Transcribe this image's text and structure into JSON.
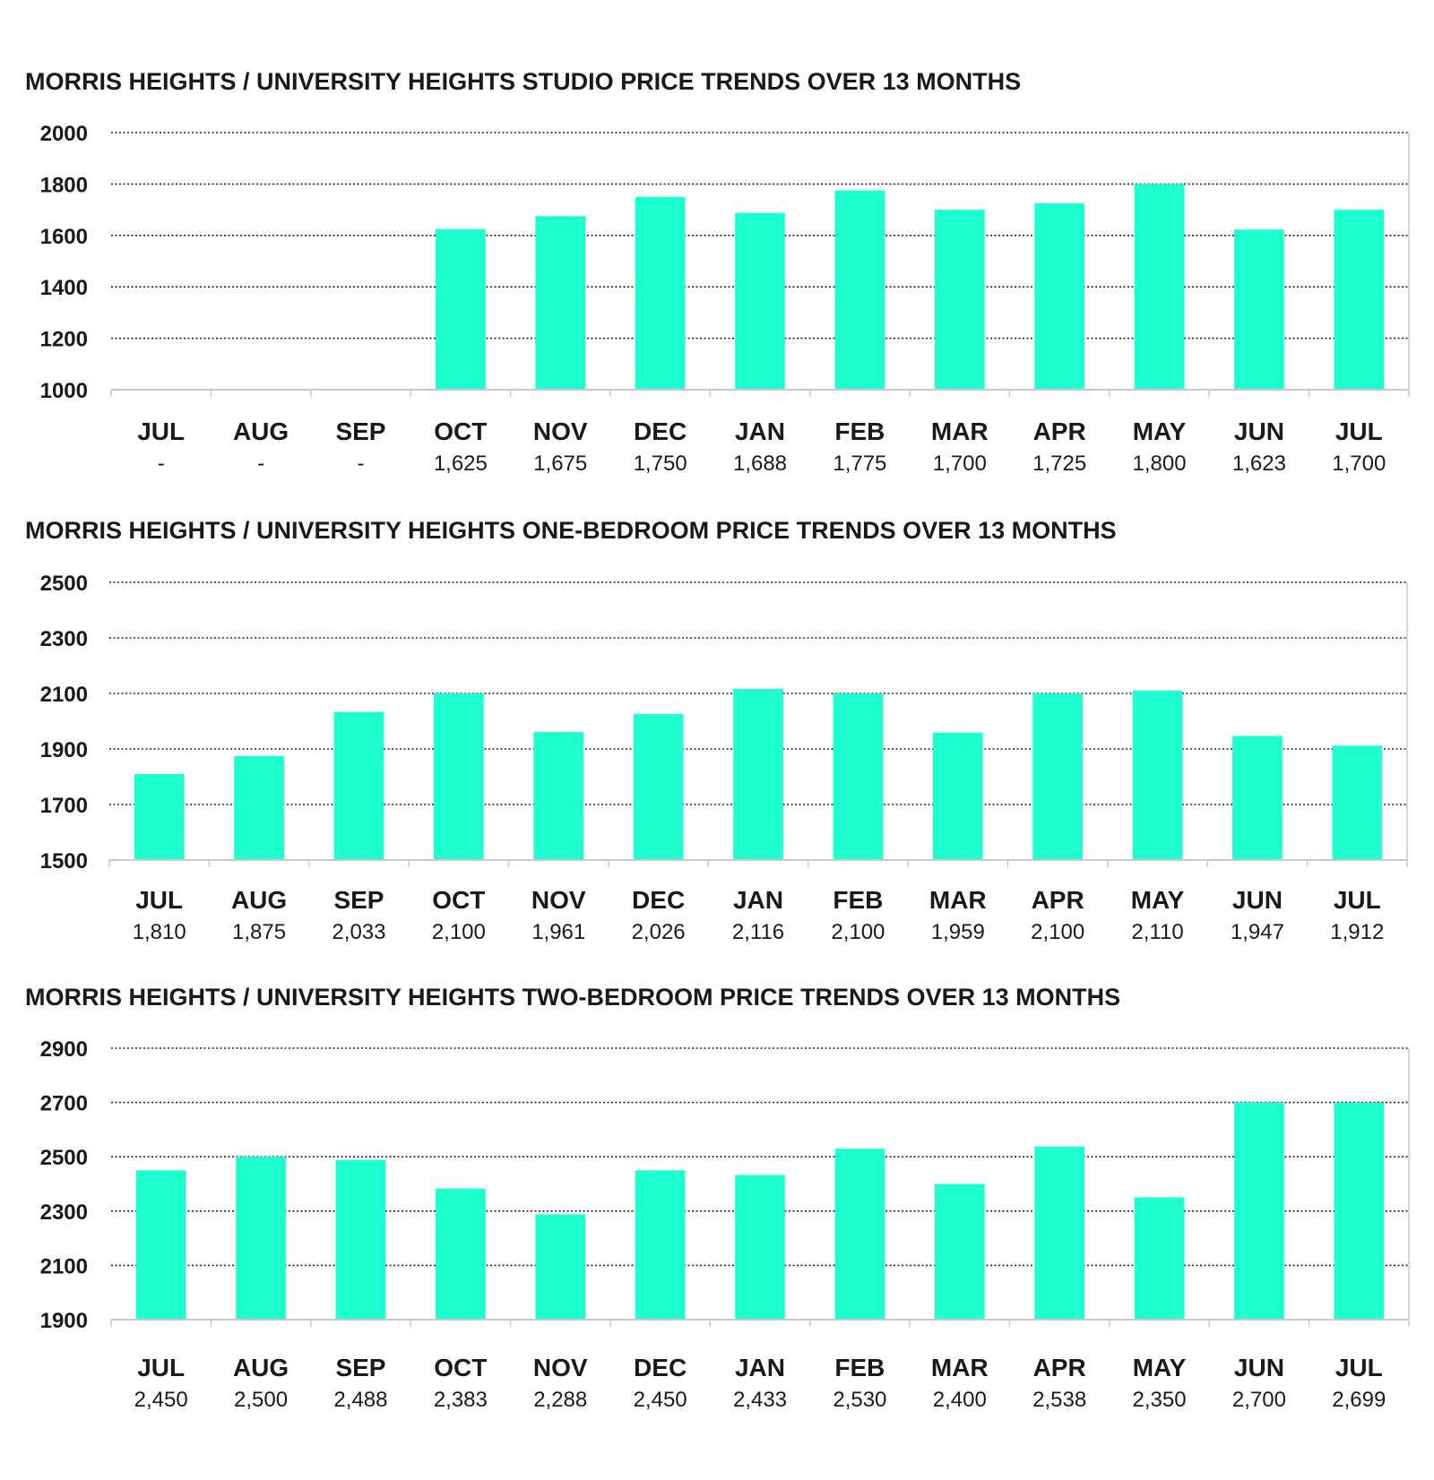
{
  "colors": {
    "bar": "#1dffce",
    "axis": "#c8c8c8",
    "grid": "#222222",
    "text": "#1a1a1a"
  },
  "chart_data": [
    {
      "type": "bar",
      "title": "MORRIS HEIGHTS / UNIVERSITY HEIGHTS STUDIO PRICE TRENDS OVER 13 MONTHS",
      "categories": [
        "JUL",
        "AUG",
        "SEP",
        "OCT",
        "NOV",
        "DEC",
        "JAN",
        "FEB",
        "MAR",
        "APR",
        "MAY",
        "JUN",
        "JUL"
      ],
      "values": [
        null,
        null,
        null,
        1625,
        1675,
        1750,
        1688,
        1775,
        1700,
        1725,
        1800,
        1623,
        1700
      ],
      "value_labels": [
        "-",
        "-",
        "-",
        "1,625",
        "1,675",
        "1,750",
        "1,688",
        "1,775",
        "1,700",
        "1,725",
        "1,800",
        "1,623",
        "1,700"
      ],
      "ylim": [
        1000,
        2000
      ],
      "yticks": [
        1000,
        1200,
        1400,
        1600,
        1800,
        2000
      ],
      "grid": true
    },
    {
      "type": "bar",
      "title": "MORRIS HEIGHTS / UNIVERSITY HEIGHTS ONE-BEDROOM PRICE TRENDS OVER 13 MONTHS",
      "categories": [
        "JUL",
        "AUG",
        "SEP",
        "OCT",
        "NOV",
        "DEC",
        "JAN",
        "FEB",
        "MAR",
        "APR",
        "MAY",
        "JUN",
        "JUL"
      ],
      "values": [
        1810,
        1875,
        2033,
        2100,
        1961,
        2026,
        2116,
        2100,
        1959,
        2100,
        2110,
        1947,
        1912
      ],
      "value_labels": [
        "1,810",
        "1,875",
        "2,033",
        "2,100",
        "1,961",
        "2,026",
        "2,116",
        "2,100",
        "1,959",
        "2,100",
        "2,110",
        "1,947",
        "1,912"
      ],
      "ylim": [
        1500,
        2500
      ],
      "yticks": [
        1500,
        1700,
        1900,
        2100,
        2300,
        2500
      ],
      "grid": true
    },
    {
      "type": "bar",
      "title": "MORRIS HEIGHTS / UNIVERSITY HEIGHTS TWO-BEDROOM PRICE TRENDS OVER 13 MONTHS",
      "categories": [
        "JUL",
        "AUG",
        "SEP",
        "OCT",
        "NOV",
        "DEC",
        "JAN",
        "FEB",
        "MAR",
        "APR",
        "MAY",
        "JUN",
        "JUL"
      ],
      "values": [
        2450,
        2500,
        2488,
        2383,
        2288,
        2450,
        2433,
        2530,
        2400,
        2538,
        2350,
        2700,
        2699
      ],
      "value_labels": [
        "2,450",
        "2,500",
        "2,488",
        "2,383",
        "2,288",
        "2,450",
        "2,433",
        "2,530",
        "2,400",
        "2,538",
        "2,350",
        "2,700",
        "2,699"
      ],
      "ylim": [
        1900,
        2900
      ],
      "yticks": [
        1900,
        2100,
        2300,
        2500,
        2700,
        2900
      ],
      "grid": true
    }
  ]
}
